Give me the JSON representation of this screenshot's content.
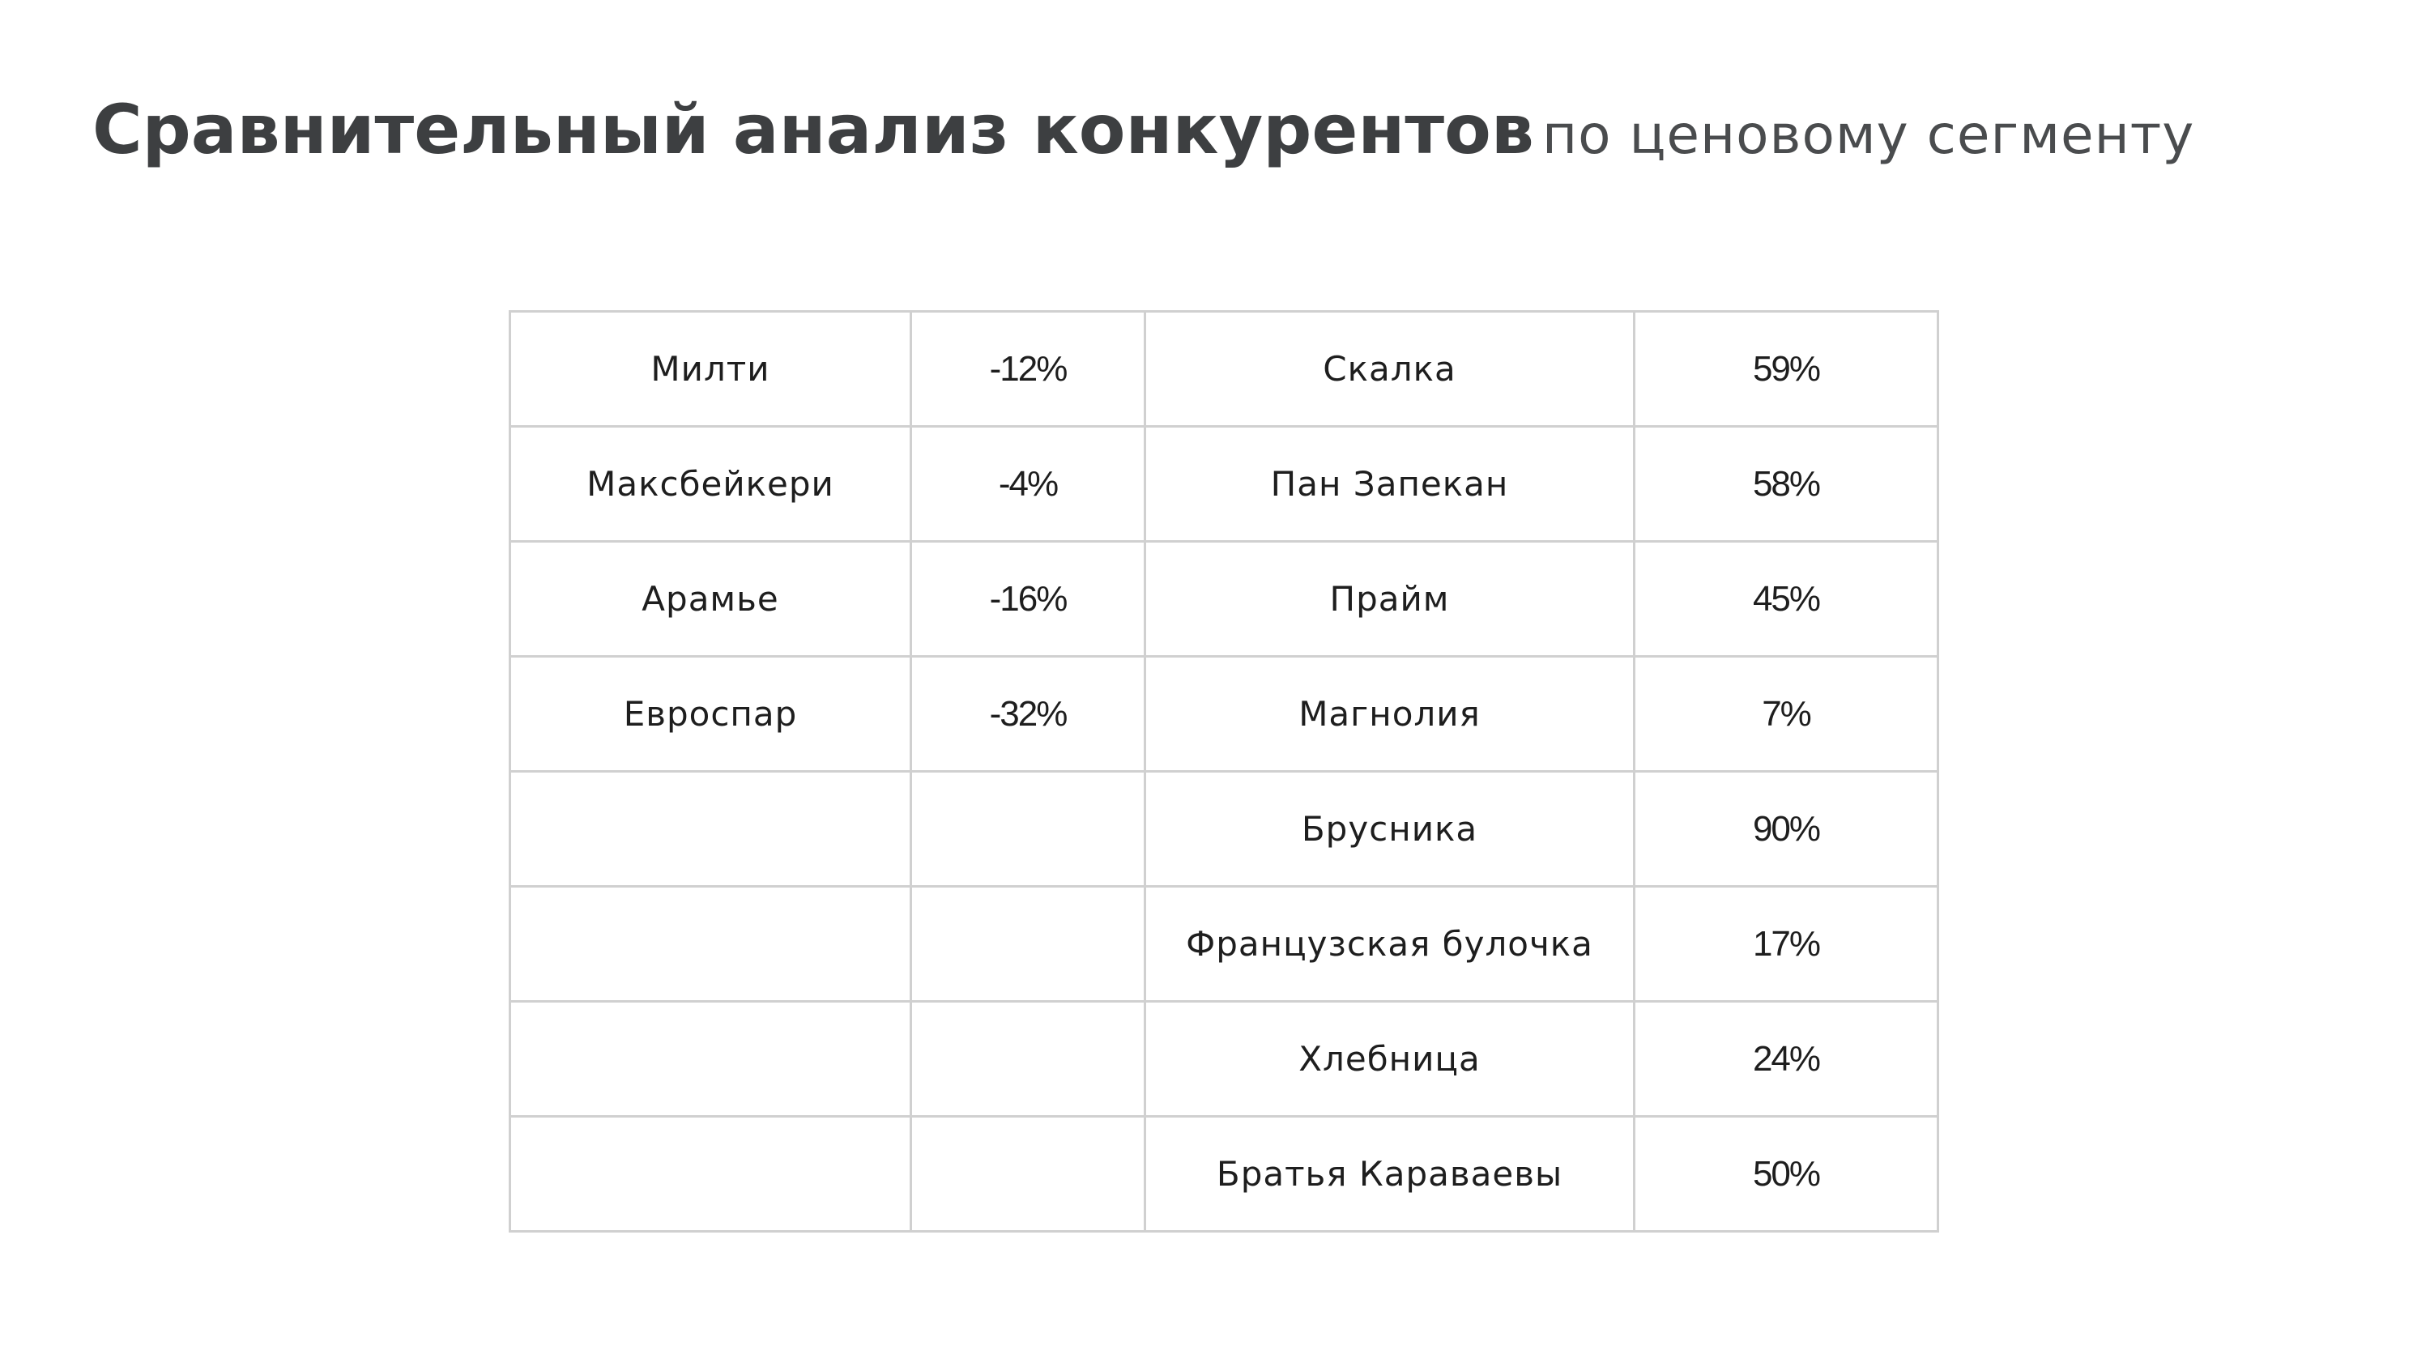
{
  "title": {
    "main": "Сравнительный анализ конкурентов",
    "sub": "по ценовому сегменту"
  },
  "table": {
    "rows": [
      {
        "left_name": "Милти",
        "left_value": "-12%",
        "right_name": "Скалка",
        "right_value": "59%"
      },
      {
        "left_name": "Максбейкери",
        "left_value": "-4%",
        "right_name": "Пан Запекан",
        "right_value": "58%"
      },
      {
        "left_name": "Арамье",
        "left_value": "-16%",
        "right_name": "Прайм",
        "right_value": "45%"
      },
      {
        "left_name": "Евроспар",
        "left_value": "-32%",
        "right_name": "Магнолия",
        "right_value": "7%"
      },
      {
        "left_name": "",
        "left_value": "",
        "right_name": "Брусника",
        "right_value": "90%"
      },
      {
        "left_name": "",
        "left_value": "",
        "right_name": "Французская булочка",
        "right_value": "17%"
      },
      {
        "left_name": "",
        "left_value": "",
        "right_name": "Хлебница",
        "right_value": "24%"
      },
      {
        "left_name": "",
        "left_value": "",
        "right_name": "Братья Караваевы",
        "right_value": "50%"
      }
    ]
  }
}
